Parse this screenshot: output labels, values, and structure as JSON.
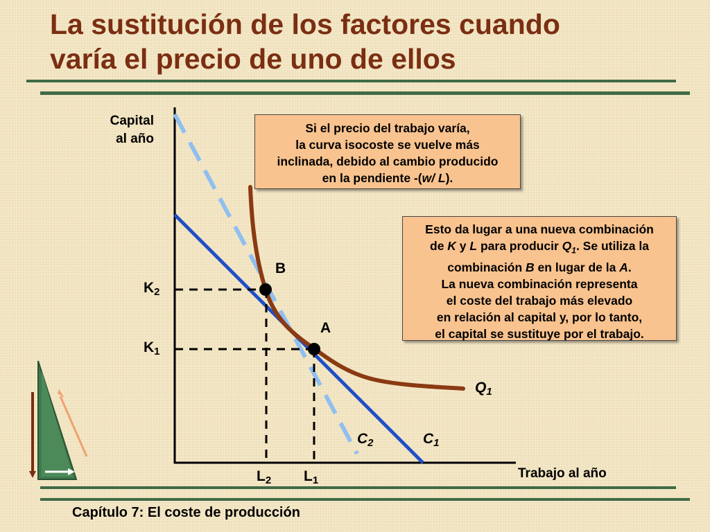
{
  "title": {
    "line1": "La sustitución de los factores cuando",
    "line2": "varía el precio de uno de ellos"
  },
  "footer": "Capítulo 7: El coste de producción",
  "axes": {
    "y_label_line1": "Capital",
    "y_label_line2": "al año",
    "x_label": "Trabajo al año"
  },
  "ticks": {
    "k2": "K",
    "k2_sub": "2",
    "k1": "K",
    "k1_sub": "1",
    "l2": "L",
    "l2_sub": "2",
    "l1": "L",
    "l1_sub": "1"
  },
  "points": {
    "a": "A",
    "b": "B"
  },
  "curves": {
    "q1": "Q",
    "q1_sub": "1",
    "c1": "C",
    "c1_sub": "1",
    "c2": "C",
    "c2_sub": "2"
  },
  "callout_top": {
    "line1": "Si el precio del trabajo varía,",
    "line2": "la curva isocoste se vuelve más",
    "line3": "inclinada, debido al cambio producido",
    "line4_pre": "en la pendiente -(",
    "line4_it": "w/ L",
    "line4_post": ")."
  },
  "callout_right": {
    "line1": "Esto da lugar a una nueva combinación",
    "line2_a": "de ",
    "line2_k": "K",
    "line2_b": " y ",
    "line2_l": "L",
    "line2_c": " para producir ",
    "line2_q": "Q",
    "line2_q_sub": "1",
    "line2_d": ". Se utiliza la",
    "line3_a": "combinación ",
    "line3_b": "B",
    "line3_c": " en lugar de la ",
    "line3_d": "A",
    "line3_e": ".",
    "line4": "La nueva combinación representa",
    "line5": "el coste del trabajo más elevado",
    "line6": "en relación al capital y, por lo tanto,",
    "line7": "el capital se sustituye por el trabajo."
  },
  "colors": {
    "title": "#7a2e12",
    "rule": "#3f6b46",
    "isocost_c1": "#1f4fc8",
    "isocost_c2": "#8fbff0",
    "isoquant": "#8a3a12",
    "callout_fill": "#f9c38f"
  }
}
